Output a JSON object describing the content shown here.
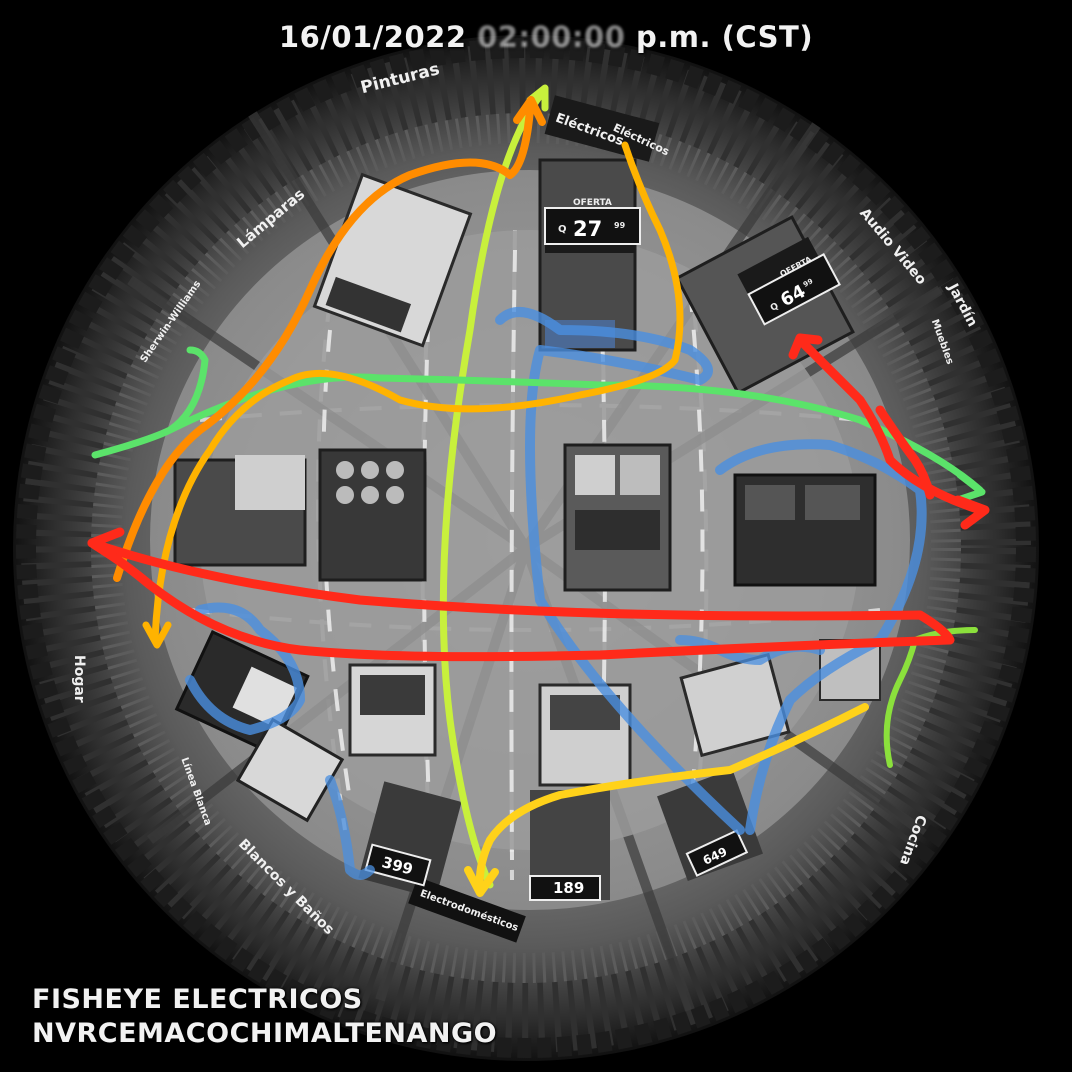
{
  "overlay": {
    "timestamp_date": "16/01/2022",
    "timestamp_time": "02:00:00",
    "timestamp_suffix": "p.m. (CST)",
    "camera_name_line1": "FISHEYE ELECTRICOS",
    "camera_name_line2": "NVRCEMACOCHIMALTENANGO"
  },
  "store_signs": {
    "pinturas": "Pinturas",
    "lamparas": "Lámparas",
    "sherwin": "Sherwin-Williams",
    "electricos_1": "Eléctricos",
    "electricos_2": "Eléctricos",
    "audio_video": "Audio Video",
    "jardin": "Jardín",
    "muebles": "Muebles",
    "cocina": "Cocina",
    "hogar": "Hogar",
    "linea_blanca": "Línea Blanca",
    "blancos_banos": "Blancos y Baños",
    "electrodomesticos": "Electrodomésticos",
    "oferta_1": "OFERTA",
    "oferta_2": "OFERTA"
  },
  "price_tags": {
    "tag_27": "27",
    "tag_27_q": "Q",
    "tag_27_cents": "99",
    "tag_64": "64",
    "tag_64_q": "Q",
    "tag_64_cents": "99",
    "tag_399": "399",
    "tag_189": "189",
    "tag_649": "649"
  },
  "path_colors": {
    "red": "#ff2a1a",
    "orange": "#ff8c00",
    "amber": "#ffb300",
    "yellow": "#ffd21a",
    "lime": "#c8f03c",
    "green": "#5be36a",
    "blue": "#4a8fe0"
  }
}
